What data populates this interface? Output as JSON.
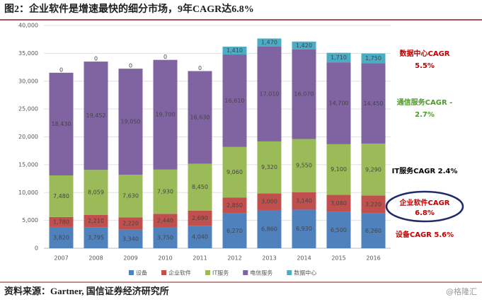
{
  "chart_data": {
    "type": "stacked_bar",
    "title": "图2：企业软件是增速最快的细分市场，9年CAGR达6.8%",
    "categories": [
      "2007",
      "2008",
      "2009",
      "2010",
      "2011",
      "2012",
      "2013",
      "2014",
      "2015",
      "2016"
    ],
    "series": [
      {
        "name": "设备",
        "color": "#4f81bd",
        "values": [
          3820,
          3795,
          3340,
          3750,
          4040,
          6270,
          6860,
          6930,
          6500,
          6260
        ],
        "value_labels": [
          "3,820",
          "3,795",
          "3,340",
          "3,750",
          "4,040",
          "6,270",
          "6,860",
          "6,930",
          "6,500",
          "6,260"
        ]
      },
      {
        "name": "企业软件",
        "color": "#c0504d",
        "values": [
          1780,
          2210,
          2220,
          2440,
          2690,
          2850,
          3000,
          3140,
          3080,
          3220
        ],
        "value_labels": [
          "1,780",
          "2,210",
          "2,220",
          "2,440",
          "2,690",
          "2,850",
          "3,000",
          "3,140",
          "3,080",
          "3,220"
        ]
      },
      {
        "name": "IT服务",
        "color": "#9bbb59",
        "values": [
          7480,
          8059,
          7630,
          7930,
          8450,
          9060,
          9320,
          9550,
          9100,
          9290
        ],
        "value_labels": [
          "7,480",
          "8,059",
          "7,630",
          "7,930",
          "8,450",
          "9,060",
          "9,320",
          "9,550",
          "9,100",
          "9,290"
        ]
      },
      {
        "name": "电信服务",
        "color": "#8064a2",
        "values": [
          18430,
          19452,
          19050,
          19700,
          16630,
          16610,
          17010,
          16070,
          14700,
          14450
        ],
        "value_labels": [
          "18,430",
          "19,452",
          "19,050",
          "19,700",
          "16,630",
          "16,610",
          "17,010",
          "16,070",
          "14,700",
          "14,450"
        ]
      },
      {
        "name": "数据中心",
        "color": "#4bacc6",
        "values": [
          0,
          0,
          0,
          0,
          0,
          1410,
          1470,
          1420,
          1710,
          1750
        ],
        "value_labels": [
          "0",
          "0",
          "0",
          "0",
          "0",
          "1,410",
          "1,470",
          "1,420",
          "1,710",
          "1,750"
        ]
      }
    ],
    "ylim": [
      0,
      40000
    ],
    "yticks": [
      0,
      {
        "value": 5000,
        "label": "5,000"
      },
      {
        "value": 10000,
        "label": "10,000"
      },
      {
        "value": 15000,
        "label": "15,000"
      },
      {
        "value": 20000,
        "label": "20,000"
      },
      {
        "value": 25000,
        "label": "25,000"
      },
      {
        "value": 30000,
        "label": "30,000"
      },
      {
        "value": 35000,
        "label": "35,000"
      },
      {
        "value": 40000,
        "label": "40,000"
      }
    ],
    "annotations": [
      {
        "lines": [
          "数据中心CAGR",
          "5.5%"
        ],
        "color": "#c00000"
      },
      {
        "lines": [
          "通信服务CAGR -",
          "2.7%"
        ],
        "color": "#4e9a2a"
      },
      {
        "lines": [
          "IT服务CAGR 2.4%"
        ],
        "color": "#000000"
      },
      {
        "lines": [
          "企业软件CAGR",
          "6.8%"
        ],
        "color": "#c00000"
      },
      {
        "lines": [
          "设备CAGR 5.6%"
        ],
        "color": "#c00000"
      }
    ],
    "source": "资料来源：Gartner, 国信证券经济研究所",
    "watermark": "@格隆汇"
  }
}
